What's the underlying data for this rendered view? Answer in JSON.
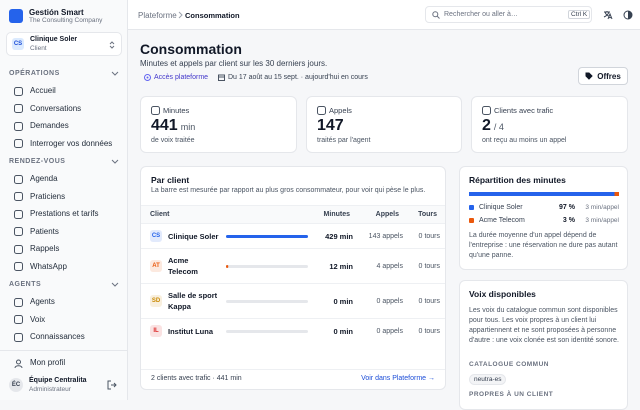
{
  "sidebar": {
    "brand": {
      "name": "Gestión Smart",
      "tagline": "The Consulting Company"
    },
    "client": {
      "initials": "CS",
      "name": "Clinique Soler",
      "role": "Client"
    },
    "sections": [
      {
        "title": "OPÉRATIONS",
        "items": [
          "Accueil",
          "Conversations",
          "Demandes",
          "Interroger vos données"
        ]
      },
      {
        "title": "RENDEZ-VOUS",
        "items": [
          "Agenda",
          "Praticiens",
          "Prestations et tarifs",
          "Patients",
          "Rappels",
          "WhatsApp"
        ]
      },
      {
        "title": "AGENTS",
        "items": [
          "Agents",
          "Voix",
          "Connaissances"
        ]
      }
    ],
    "profile": "Mon profil",
    "user": {
      "initials": "ÉC",
      "name": "Équipe Centralita",
      "role": "Administrateur"
    }
  },
  "topbar": {
    "breadcrumb": [
      "Plateforme",
      "Consommation"
    ],
    "search": "Rechercher ou aller à…",
    "shortcut": "Ctrl K"
  },
  "page": {
    "title": "Consommation",
    "subtitle": "Minutes et appels par client sur les 30 derniers jours.",
    "access": "Accès plateforme",
    "period": "Du 17 août au 15 sept. · aujourd'hui en cours",
    "button": "Offres"
  },
  "stats": [
    {
      "label": "Minutes",
      "value": 441,
      "unit": "min",
      "note": "de voix traitée"
    },
    {
      "label": "Appels",
      "value": 147,
      "note": "traités par l'agent"
    },
    {
      "label": "Clients avec trafic",
      "value": 2,
      "unit": "/ 4",
      "note": "ont reçu au moins un appel"
    }
  ],
  "per_client": {
    "title": "Par client",
    "description": "La barre est mesurée par rapport au plus gros consommateur, pour voir qui pèse le plus.",
    "columns": [
      "Client",
      "Minutes",
      "Appels",
      "Tours"
    ],
    "rows": [
      {
        "initials": "CS",
        "name": "Clinique Soler",
        "color": "#2563eb",
        "minutes": 429,
        "minutes_unit": "min",
        "calls": 143,
        "calls_unit": "appels",
        "turns": 0,
        "turns_unit": "tours"
      },
      {
        "initials": "AT",
        "name": "Acme Telecom",
        "color": "#ea580c",
        "minutes": 12,
        "minutes_unit": "min",
        "calls": 4,
        "calls_unit": "appels",
        "turns": 0,
        "turns_unit": "tours"
      },
      {
        "initials": "SD",
        "name": "Salle de sport Kappa",
        "color": "#ca8a04",
        "minutes": 0,
        "minutes_unit": "min",
        "calls": 0,
        "calls_unit": "appels",
        "turns": 0,
        "turns_unit": "tours"
      },
      {
        "initials": "IL",
        "name": "Institut Luna",
        "color": "#dc2626",
        "minutes": 0,
        "minutes_unit": "min",
        "calls": 0,
        "calls_unit": "appels",
        "turns": 0,
        "turns_unit": "tours"
      }
    ],
    "footer": "2 clients avec trafic · 441 min",
    "link": "Voir dans Plateforme →"
  },
  "distribution": {
    "title": "Répartition des minutes",
    "rows": [
      {
        "name": "Clinique Soler",
        "color": "#2563eb",
        "share": 97,
        "share_unit": "%",
        "rate": "3 min/appel"
      },
      {
        "name": "Acme Telecom",
        "color": "#ea580c",
        "share": 3,
        "share_unit": "%",
        "rate": "3 min/appel"
      }
    ],
    "note": "La durée moyenne d'un appel dépend de l'entreprise : une réservation ne dure pas autant qu'une panne."
  },
  "voices": {
    "title": "Voix disponibles",
    "description": "Les voix du catalogue commun sont disponibles pour tous. Les voix propres à un client lui appartiennent et ne sont proposées à personne d'autre : une voix clonée est son identité sonore.",
    "catalog_title": "CATALOGUE COMMUN",
    "catalog": [
      "neutra-es"
    ],
    "own_title": "PROPRES À UN CLIENT"
  }
}
